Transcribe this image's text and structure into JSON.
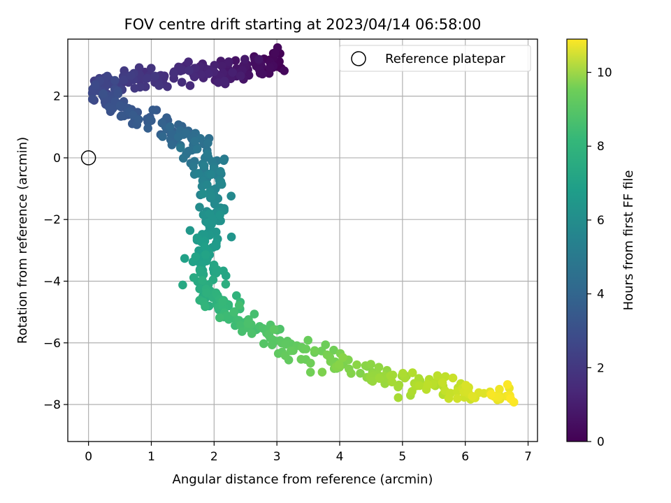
{
  "chart_data": {
    "type": "scatter",
    "title": "FOV centre drift starting at 2023/04/14 06:58:00",
    "xlabel": "Angular distance from reference (arcmin)",
    "ylabel": "Rotation from reference (arcmin)",
    "xlim": [
      -0.33,
      7.15
    ],
    "ylim": [
      -9.2,
      3.85
    ],
    "xticks": [
      0,
      1,
      2,
      3,
      4,
      5,
      6,
      7
    ],
    "yticks": [
      -8,
      -6,
      -4,
      -2,
      0,
      2
    ],
    "grid": true,
    "legend": {
      "position": "top-right",
      "entries": [
        "Reference platepar"
      ]
    },
    "colorbar": {
      "label": "Hours from first FF file",
      "range": [
        0,
        10.9
      ],
      "ticks": [
        0,
        2,
        4,
        6,
        8,
        10
      ],
      "colormap": "viridis"
    },
    "reference_point": {
      "x": 0,
      "y": 0
    },
    "drift_path": [
      {
        "x": 3.05,
        "y": 3.1,
        "t": 0.0
      },
      {
        "x": 2.8,
        "y": 3.0,
        "t": 0.3
      },
      {
        "x": 2.5,
        "y": 2.85,
        "t": 0.6
      },
      {
        "x": 2.1,
        "y": 2.8,
        "t": 0.9
      },
      {
        "x": 1.7,
        "y": 2.75,
        "t": 1.2
      },
      {
        "x": 1.2,
        "y": 2.6,
        "t": 1.5
      },
      {
        "x": 0.8,
        "y": 2.55,
        "t": 1.8
      },
      {
        "x": 0.35,
        "y": 2.5,
        "t": 2.1
      },
      {
        "x": 0.2,
        "y": 2.2,
        "t": 2.4
      },
      {
        "x": 0.4,
        "y": 1.9,
        "t": 2.7
      },
      {
        "x": 0.75,
        "y": 1.4,
        "t": 3.0
      },
      {
        "x": 1.15,
        "y": 1.0,
        "t": 3.3
      },
      {
        "x": 1.5,
        "y": 0.7,
        "t": 3.7
      },
      {
        "x": 1.75,
        "y": 0.3,
        "t": 4.1
      },
      {
        "x": 1.9,
        "y": -0.3,
        "t": 4.6
      },
      {
        "x": 1.98,
        "y": -1.0,
        "t": 5.0
      },
      {
        "x": 1.98,
        "y": -1.8,
        "t": 5.4
      },
      {
        "x": 1.92,
        "y": -2.6,
        "t": 5.8
      },
      {
        "x": 1.85,
        "y": -3.3,
        "t": 6.2
      },
      {
        "x": 1.82,
        "y": -4.0,
        "t": 6.6
      },
      {
        "x": 1.95,
        "y": -4.6,
        "t": 7.0
      },
      {
        "x": 2.25,
        "y": -5.1,
        "t": 7.4
      },
      {
        "x": 2.7,
        "y": -5.6,
        "t": 7.8
      },
      {
        "x": 3.2,
        "y": -6.1,
        "t": 8.2
      },
      {
        "x": 3.8,
        "y": -6.6,
        "t": 8.6
      },
      {
        "x": 4.4,
        "y": -6.95,
        "t": 9.0
      },
      {
        "x": 5.0,
        "y": -7.2,
        "t": 9.4
      },
      {
        "x": 5.6,
        "y": -7.4,
        "t": 9.8
      },
      {
        "x": 6.2,
        "y": -7.65,
        "t": 10.3
      },
      {
        "x": 6.8,
        "y": -7.75,
        "t": 10.9
      }
    ],
    "point_count": 600,
    "point_spread": 0.13
  }
}
